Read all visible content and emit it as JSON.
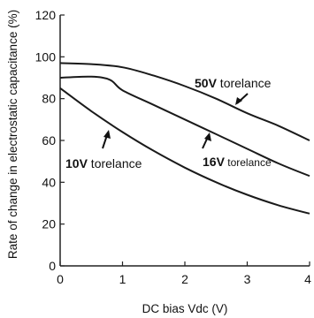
{
  "chart_data": {
    "type": "line",
    "xlabel": "DC bias Vdc (V)",
    "ylabel": "Rate of change in electrostatic capacitance (%)",
    "xlim": [
      0,
      4
    ],
    "ylim": [
      0,
      120
    ],
    "xticks": [
      "0",
      "1",
      "2",
      "3",
      "4"
    ],
    "yticks": [
      "0",
      "20",
      "40",
      "60",
      "80",
      "100",
      "120"
    ],
    "grid": false,
    "series": [
      {
        "bold": "50V",
        "suffix": " torelance",
        "x": [
          0,
          0.5,
          1,
          1.5,
          2,
          2.5,
          3,
          3.5,
          4
        ],
        "y": [
          97,
          96.5,
          95,
          91,
          86,
          80,
          73,
          67,
          60
        ]
      },
      {
        "bold": "16V",
        "suffix": " torelance",
        "x": [
          0,
          0.5,
          0.8,
          1,
          1.5,
          2,
          2.5,
          3,
          3.5,
          4
        ],
        "y": [
          90,
          90.5,
          89,
          84,
          77,
          70,
          63,
          56,
          49,
          43
        ]
      },
      {
        "bold": "10V",
        "suffix": " torelance",
        "x": [
          0,
          0.5,
          1,
          1.5,
          2,
          2.5,
          3,
          3.5,
          4
        ],
        "y": [
          85,
          74,
          64,
          55,
          47,
          40,
          34,
          29,
          25
        ]
      }
    ]
  }
}
